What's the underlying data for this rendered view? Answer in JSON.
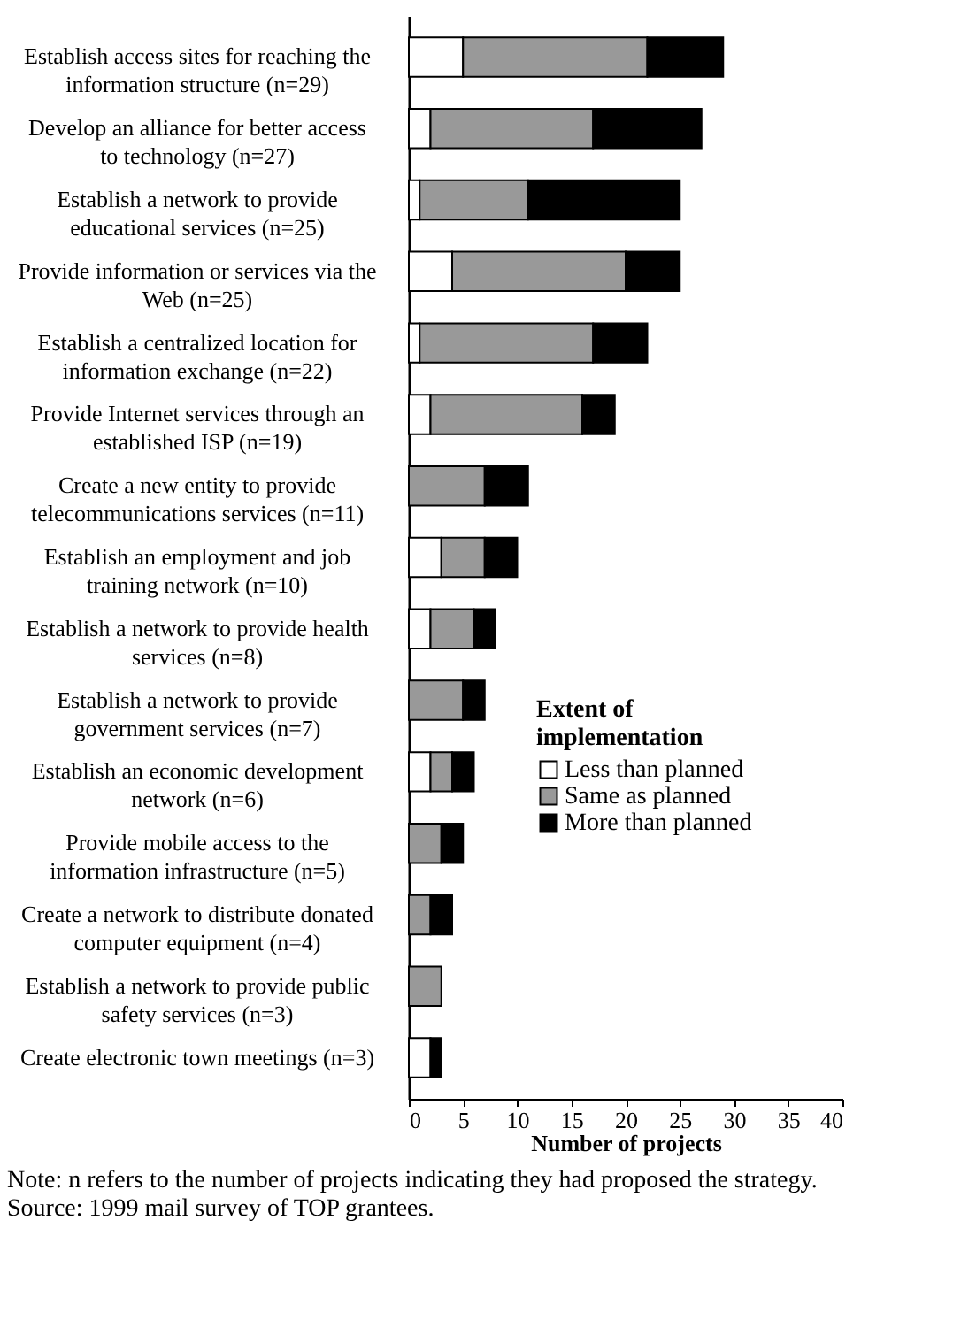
{
  "chart_data": {
    "type": "bar",
    "orientation": "horizontal",
    "stacked": true,
    "categories": [
      "Establish access sites for reaching the information structure (n=29)",
      "Develop an alliance for better access to technology (n=27)",
      "Establish a network to provide educational services (n=25)",
      "Provide information or services via the Web (n=25)",
      "Establish a centralized location for information exchange (n=22)",
      "Provide Internet services through an established ISP (n=19)",
      "Create a new entity to provide telecommunications services (n=11)",
      "Establish an employment and job training network (n=10)",
      "Establish a network to provide health services (n=8)",
      "Establish a network to provide government services (n=7)",
      "Establish an economic development network (n=6)",
      "Provide mobile access to the information infrastructure (n=5)",
      "Create a network to distribute donated computer equipment (n=4)",
      "Establish a network to provide public safety services (n=3)",
      "Create electronic town meetings (n=3)"
    ],
    "series": [
      {
        "name": "Less than planned",
        "color": "#ffffff",
        "values": [
          5,
          2,
          1,
          4,
          1,
          2,
          0,
          3,
          2,
          0,
          2,
          0,
          0,
          0,
          2
        ]
      },
      {
        "name": "Same as planned",
        "color": "#999999",
        "values": [
          17,
          15,
          10,
          16,
          16,
          14,
          7,
          4,
          4,
          5,
          2,
          3,
          2,
          3,
          0
        ]
      },
      {
        "name": "More than planned",
        "color": "#000000",
        "values": [
          7,
          10,
          14,
          5,
          5,
          3,
          4,
          3,
          2,
          2,
          2,
          2,
          2,
          0,
          1
        ]
      }
    ],
    "xlim": [
      0,
      40
    ],
    "xticks": [
      0,
      5,
      10,
      15,
      20,
      25,
      30,
      35,
      40
    ],
    "xlabel": "Number of projects",
    "legend_title": "Extent of implementation",
    "legend": "bottom right",
    "grid": false,
    "annotations": [
      "Note:  n refers to the number of projects indicating they had proposed the strategy.",
      "Source:  1999 mail survey of TOP grantees."
    ]
  }
}
